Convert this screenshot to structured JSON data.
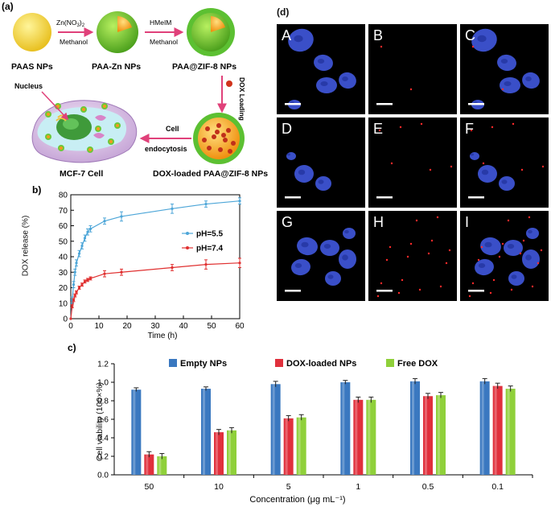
{
  "panel_a": {
    "label": "(a)",
    "paas_label": "PAAS NPs",
    "paa_zn_label": "PAA-Zn NPs",
    "paa_zif_label": "PAA@ZIF-8 NPs",
    "dox_label": "DOX-loaded PAA@ZIF-8 NPs",
    "cell_label": "MCF-7 Cell",
    "nucleus_label": "Nucleus",
    "arrow1_top": "Zn(NO",
    "arrow1_sub3": "3",
    "arrow1_close": ")",
    "arrow1_sub2": "2",
    "arrow1_bottom": "Methanol",
    "arrow2_top": "HMeIM",
    "arrow2_bottom": "Methanol",
    "dox_loading": "DOX Loading",
    "cell_endo_1": "Cell",
    "cell_endo_2": "endocytosis",
    "colors": {
      "paas": "#f0d040",
      "zn_shell": "#7cc832",
      "core": "#f5a21e",
      "arrow": "#e0417a",
      "dox_dot": "#d0331c"
    }
  },
  "panel_d": {
    "label": "(d)",
    "tiles": [
      "A",
      "B",
      "C",
      "D",
      "E",
      "F",
      "G",
      "H",
      "I"
    ]
  },
  "chart_data": [
    {
      "panel": "(b)",
      "type": "line",
      "xlabel": "Time (h)",
      "ylabel": "DOX release (%)",
      "xlim": [
        0,
        60
      ],
      "ylim": [
        0,
        80
      ],
      "xticks": [
        0,
        10,
        20,
        30,
        40,
        50,
        60
      ],
      "yticks": [
        0,
        10,
        20,
        30,
        40,
        50,
        60,
        70,
        80
      ],
      "legend_position": "right",
      "series": [
        {
          "name": "pH=5.5",
          "color": "#4da6d8",
          "x": [
            0,
            0.5,
            1,
            1.5,
            2,
            3,
            4,
            5,
            6,
            7,
            12,
            18,
            36,
            48,
            60
          ],
          "y": [
            0,
            12,
            22,
            30,
            36,
            42,
            47,
            52,
            56,
            58,
            63,
            66,
            71,
            74,
            76
          ],
          "err": [
            0,
            2,
            2,
            2,
            2,
            2,
            2,
            2,
            2,
            2,
            2,
            3,
            3,
            2,
            2
          ]
        },
        {
          "name": "pH=7.4",
          "color": "#e03030",
          "x": [
            0,
            0.5,
            1,
            1.5,
            2,
            3,
            4,
            5,
            6,
            7,
            12,
            18,
            36,
            48,
            60
          ],
          "y": [
            0,
            8,
            12,
            15,
            17,
            20,
            22,
            24,
            25,
            26,
            29,
            30,
            33,
            35,
            36
          ],
          "err": [
            0,
            1,
            1,
            1,
            1,
            1,
            1,
            1,
            1,
            1,
            2,
            2,
            2,
            3,
            3
          ]
        }
      ]
    },
    {
      "panel": "(c)",
      "type": "bar",
      "xlabel": "Concentration (μg mL⁻¹)",
      "ylabel": "Cell viability (100×%)",
      "ylim": [
        0,
        1.2
      ],
      "yticks": [
        "0.0",
        "0.2",
        "0.4",
        "0.6",
        "0.8",
        "1.0",
        "1.2"
      ],
      "categories": [
        "50",
        "10",
        "5",
        "1",
        "0.5",
        "0.1"
      ],
      "legend_position": "top",
      "series": [
        {
          "name": "Empty NPs",
          "color": "#3a78c0",
          "values": [
            0.92,
            0.93,
            0.98,
            1.0,
            1.01,
            1.01
          ],
          "err": [
            0.02,
            0.02,
            0.03,
            0.02,
            0.03,
            0.03
          ]
        },
        {
          "name": "DOX-loaded NPs",
          "color": "#e0303c",
          "values": [
            0.22,
            0.46,
            0.61,
            0.81,
            0.85,
            0.96
          ],
          "err": [
            0.03,
            0.03,
            0.03,
            0.03,
            0.03,
            0.03
          ]
        },
        {
          "name": "Free DOX",
          "color": "#8fd03a",
          "values": [
            0.2,
            0.48,
            0.62,
            0.81,
            0.86,
            0.93
          ],
          "err": [
            0.03,
            0.03,
            0.03,
            0.03,
            0.03,
            0.03
          ]
        }
      ]
    }
  ]
}
